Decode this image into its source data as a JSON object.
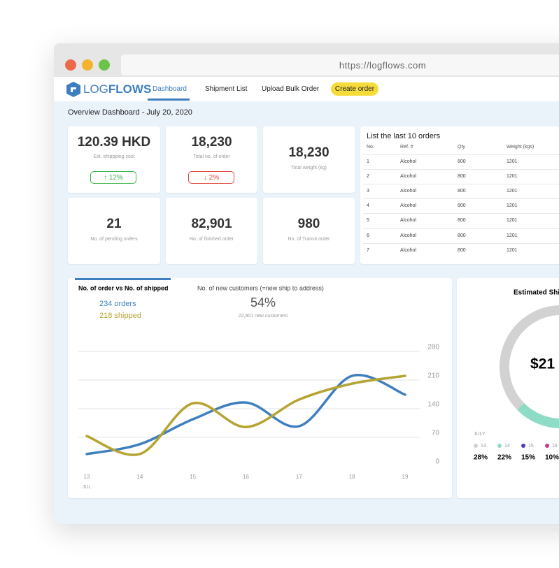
{
  "browser": {
    "url": "https://logflows.com"
  },
  "nav": {
    "logo_light": "LOG",
    "logo_bold": "FLOWS",
    "tabs": [
      "Dashboard",
      "Shipment List",
      "Upload Bulk Order"
    ],
    "button": "Create order"
  },
  "page_title": "Overview Dashboard - July 20, 2020",
  "kpis": [
    {
      "value": "120.39 HKD",
      "label": "Est. shippping cost",
      "badge": "↑ 12%",
      "badge_color": "#3bb54a"
    },
    {
      "value": "18,230",
      "label": "Total no. of order",
      "badge": "↓ 2%",
      "badge_color": "#e0443c"
    },
    {
      "value": "18,230",
      "label": "Total weight (kg)"
    },
    {
      "value": "21",
      "label": "No. of pending orders"
    },
    {
      "value": "82,901",
      "label": "No. of finished order"
    },
    {
      "value": "980",
      "label": "No. of Transit order"
    }
  ],
  "orders_table": {
    "title": "List the last 10 orders",
    "columns": [
      "No.",
      "Ref. #",
      "Qty",
      "Weight (kgs)"
    ],
    "rows": [
      [
        "1",
        "Alcohol",
        "800",
        "1201"
      ],
      [
        "2",
        "Alcohol",
        "800",
        "1201"
      ],
      [
        "3",
        "Alcohol",
        "800",
        "1201"
      ],
      [
        "4",
        "Alcohol",
        "800",
        "1201"
      ],
      [
        "5",
        "Alcohol",
        "800",
        "1201"
      ],
      [
        "6",
        "Alcohol",
        "800",
        "1201"
      ],
      [
        "7",
        "Alcohol",
        "800",
        "1201"
      ]
    ]
  },
  "chart_data": [
    {
      "type": "line",
      "tabs": [
        "No. of order vs No. of shipped",
        "No. of new customers (=new ship to address)"
      ],
      "summary": {
        "orders": "234 orders",
        "shipped": "218 shipped",
        "percent": "54%",
        "new_customers": "22,901 new customers"
      },
      "categories": [
        "13",
        "14",
        "15",
        "16",
        "17",
        "18",
        "19"
      ],
      "x_sublabel": "JUL",
      "ylim": [
        0,
        280
      ],
      "yticks": [
        0,
        70,
        140,
        210,
        280
      ],
      "grid": true,
      "series": [
        {
          "color": "#3f7fbd",
          "values": [
            19,
            43,
            104,
            145,
            87,
            210,
            164
          ]
        },
        {
          "color": "#b5a432",
          "values": [
            63,
            19,
            143,
            85,
            152,
            191,
            210
          ]
        }
      ]
    },
    {
      "type": "donut",
      "title": "Estimated Shi",
      "center_label": "$21",
      "period": "JULY",
      "categories": [
        "13",
        "14",
        "15",
        "16"
      ],
      "values": [
        28,
        22,
        15,
        10
      ],
      "value_labels": [
        "28%",
        "22%",
        "15%",
        "10%"
      ],
      "colors": [
        "#d2d2d2",
        "#8fdcc6",
        "#4a3fbf",
        "#bf3f8f"
      ]
    }
  ]
}
